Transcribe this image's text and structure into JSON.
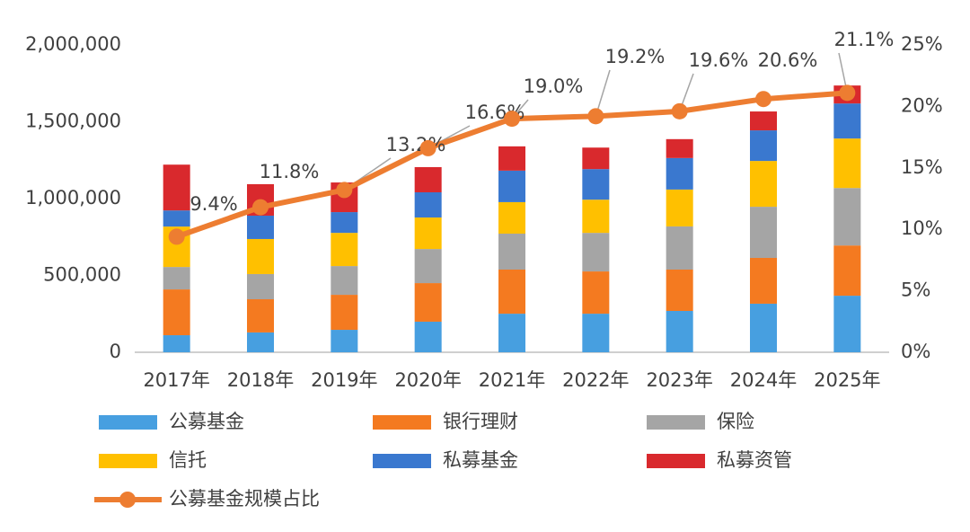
{
  "chart_data": {
    "type": "bar",
    "categories": [
      "2017年",
      "2018年",
      "2019年",
      "2020年",
      "2021年",
      "2022年",
      "2023年",
      "2024年",
      "2025年"
    ],
    "stacked": true,
    "series": [
      {
        "name": "公募基金",
        "color": "#479fe0",
        "values": [
          111000,
          129000,
          146000,
          199000,
          251000,
          251000,
          269000,
          316000,
          368000
        ]
      },
      {
        "name": "银行理财",
        "color": "#f47a20",
        "values": [
          298000,
          216000,
          228000,
          251000,
          287000,
          275000,
          269000,
          298000,
          327000
        ]
      },
      {
        "name": "保险",
        "color": "#a5a5a5",
        "values": [
          146000,
          164000,
          187000,
          222000,
          234000,
          251000,
          281000,
          333000,
          374000
        ]
      },
      {
        "name": "信托",
        "color": "#ffc000",
        "values": [
          263000,
          228000,
          216000,
          205000,
          205000,
          216000,
          240000,
          298000,
          322000
        ]
      },
      {
        "name": "私募基金",
        "color": "#3a78cf",
        "values": [
          105000,
          152000,
          135000,
          164000,
          205000,
          199000,
          205000,
          199000,
          228000
        ]
      },
      {
        "name": "私募资管",
        "color": "#d9292d",
        "values": [
          298000,
          205000,
          193000,
          164000,
          158000,
          140000,
          123000,
          123000,
          117000
        ]
      },
      {
        "name": "公募基金规模占比",
        "type": "line",
        "axis": "y2",
        "color": "#ed7d31",
        "values": [
          9.4,
          11.8,
          13.2,
          16.6,
          19.0,
          19.2,
          19.6,
          20.6,
          21.1
        ],
        "value_labels": [
          "9.4%",
          "11.8%",
          "13.2%",
          "16.6%",
          "19.0%",
          "19.2%",
          "19.6%",
          "20.6%",
          "21.1%"
        ]
      }
    ],
    "ylim": [
      0,
      2000000
    ],
    "yticks": [
      0,
      {
        "value": 500000,
        "label": "500,000"
      },
      {
        "value": 1000000,
        "label": "1,000,000"
      },
      {
        "value": 1500000,
        "label": "1,500,000"
      },
      {
        "value": 2000000,
        "label": "2,000,000"
      }
    ],
    "y2lim": [
      0,
      25
    ],
    "y2ticks": [
      {
        "value": 0,
        "label": "0%"
      },
      {
        "value": 5,
        "label": "5%"
      },
      {
        "value": 10,
        "label": "10%"
      },
      {
        "value": 15,
        "label": "15%"
      },
      {
        "value": 20,
        "label": "20%"
      },
      {
        "value": 25,
        "label": "25%"
      }
    ],
    "grid": false
  }
}
